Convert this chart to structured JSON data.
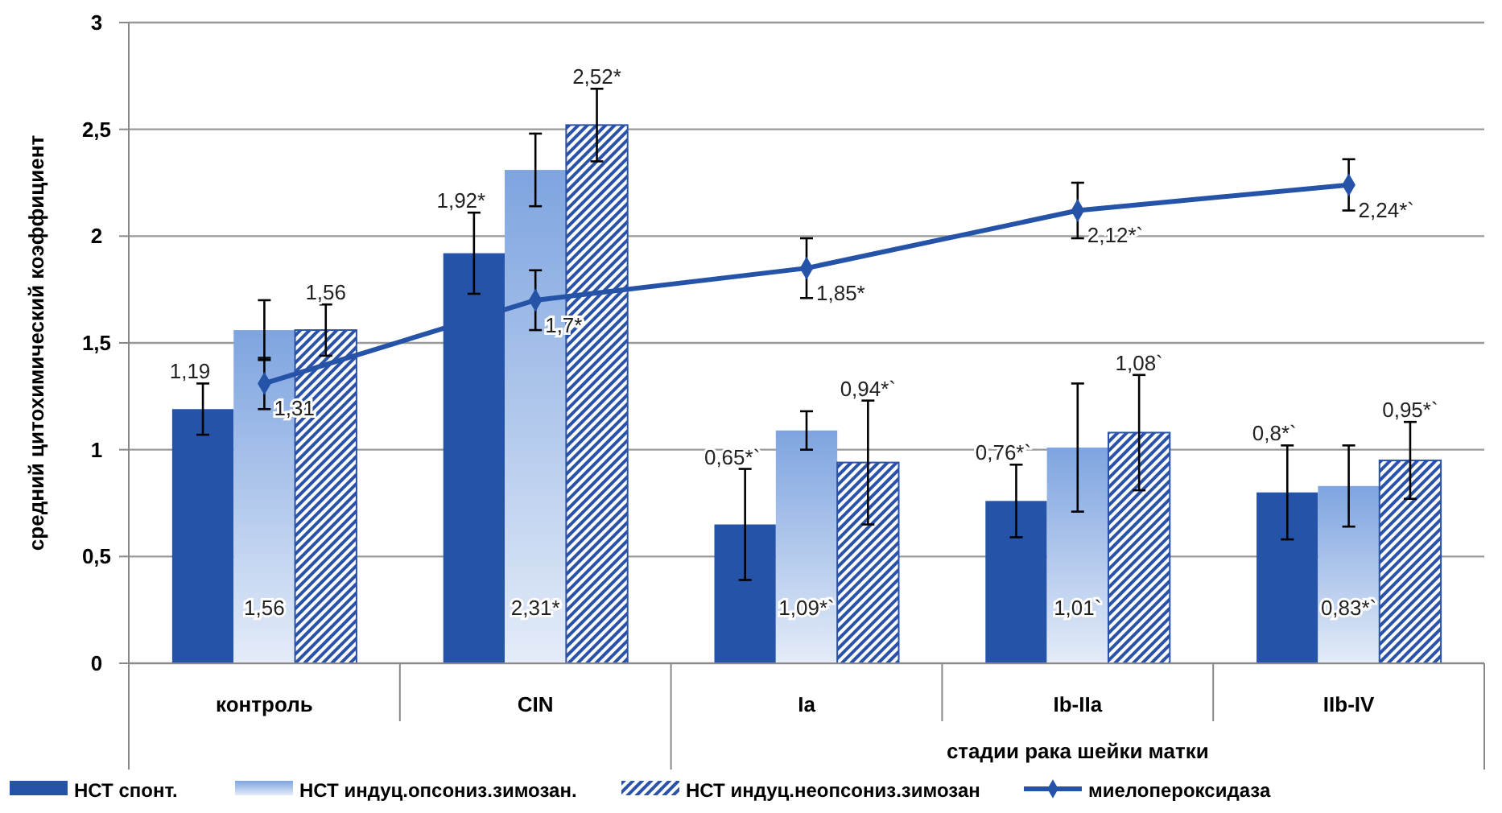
{
  "chart_data": {
    "type": "bar",
    "ylabel": "средний цитохимический коэффициент",
    "xlabel": "стадии рака шейки матки",
    "categories": [
      "контроль",
      "CIN",
      "Ia",
      "Ib-IIa",
      "IIb-IV"
    ],
    "ylim": [
      0,
      3
    ],
    "yticks": [
      {
        "value": 0,
        "label": "0"
      },
      {
        "value": 0.5,
        "label": "0,5"
      },
      {
        "value": 1,
        "label": "1"
      },
      {
        "value": 1.5,
        "label": "1,5"
      },
      {
        "value": 2,
        "label": "2"
      },
      {
        "value": 2.5,
        "label": "2,5"
      },
      {
        "value": 3,
        "label": "3"
      }
    ],
    "grid": "y",
    "legend": "bottom",
    "series": [
      {
        "name": "НСТ спонт.",
        "color": "#2553a8",
        "values": [
          1.19,
          1.92,
          0.65,
          0.76,
          0.8
        ],
        "errors": [
          0.12,
          0.19,
          0.26,
          0.17,
          0.22
        ],
        "value_labels": [
          "1,19",
          "1,92*",
          "0,65*`",
          "0,76*`",
          "0,8*`"
        ]
      },
      {
        "name": "НСТ индуц.опсониз.зимозан.",
        "color": "#7ea4e0",
        "values": [
          1.56,
          2.31,
          1.09,
          1.01,
          0.83
        ],
        "errors": [
          0.14,
          0.17,
          0.09,
          0.3,
          0.19
        ],
        "value_labels": [
          "1,56",
          "2,31*",
          "1,09*`",
          "1,01`",
          "0,83*`"
        ]
      },
      {
        "name": "НСТ индуц.неопсониз.зимозан",
        "color": "#2a52a8",
        "values": [
          1.56,
          2.52,
          0.94,
          1.08,
          0.95
        ],
        "errors": [
          0.12,
          0.17,
          0.29,
          0.27,
          0.18
        ],
        "value_labels": [
          "1,56",
          "2,52*",
          "0,94*`",
          "1,08`",
          "0,95*`"
        ]
      },
      {
        "name": "миелопероксидаза",
        "type": "line",
        "color": "#2553a8",
        "marker": "diamond",
        "values": [
          1.31,
          1.7,
          1.85,
          2.12,
          2.24
        ],
        "errors": [
          0.12,
          0.14,
          0.14,
          0.13,
          0.12
        ],
        "value_labels": [
          "1,31",
          "1,7*",
          "1,85*",
          "2,12*`",
          "2,24*`"
        ]
      }
    ]
  }
}
